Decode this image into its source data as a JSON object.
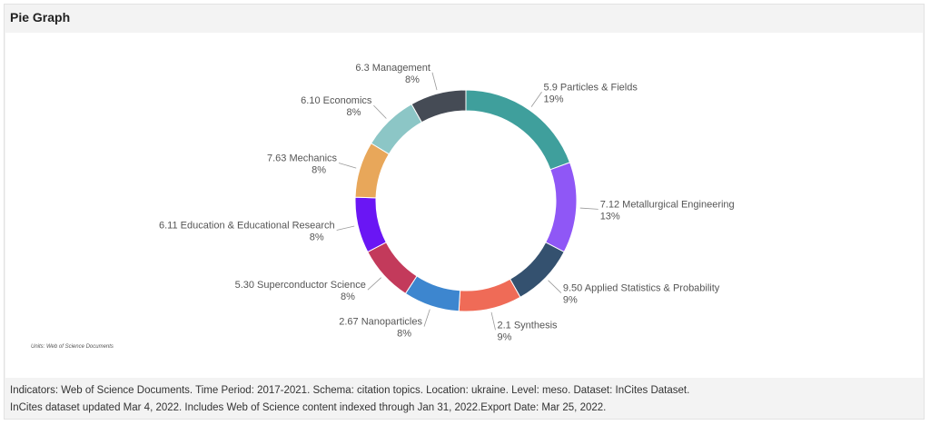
{
  "panel": {
    "title": "Pie Graph"
  },
  "chart_data": {
    "type": "pie",
    "variant": "donut",
    "title": "Pie Graph",
    "units_note": "Units: Web of Science Documents",
    "slices": [
      {
        "label": "5.9 Particles & Fields",
        "percent_label": "19%",
        "value": 19,
        "color": "#3f9f9c"
      },
      {
        "label": "7.12 Metallurgical Engineering",
        "percent_label": "13%",
        "value": 13,
        "color": "#8f57f6"
      },
      {
        "label": "9.50 Applied Statistics & Probability",
        "percent_label": "9%",
        "value": 9,
        "color": "#34516f"
      },
      {
        "label": "2.1 Synthesis",
        "percent_label": "9%",
        "value": 9,
        "color": "#ef6b57"
      },
      {
        "label": "2.67 Nanoparticles",
        "percent_label": "8%",
        "value": 8,
        "color": "#3d86cf"
      },
      {
        "label": "5.30 Superconductor Science",
        "percent_label": "8%",
        "value": 8,
        "color": "#c33a5b"
      },
      {
        "label": "6.11 Education & Educational Research",
        "percent_label": "8%",
        "value": 8,
        "color": "#6a16f4"
      },
      {
        "label": "7.63 Mechanics",
        "percent_label": "8%",
        "value": 8,
        "color": "#e8a75a"
      },
      {
        "label": "6.10 Economics",
        "percent_label": "8%",
        "value": 8,
        "color": "#8cc6c6"
      },
      {
        "label": "6.3 Management",
        "percent_label": "8%",
        "value": 8,
        "color": "#454b55"
      }
    ]
  },
  "footer": {
    "line1": "Indicators:  Web of Science Documents.  Time Period:  2017-2021.  Schema:  citation topics.  Location:  ukraine.  Level:  meso.  Dataset:  InCites Dataset.",
    "line2": "InCites dataset updated Mar 4, 2022. Includes Web of Science content indexed through Jan 31, 2022.Export Date: Mar 25, 2022."
  }
}
